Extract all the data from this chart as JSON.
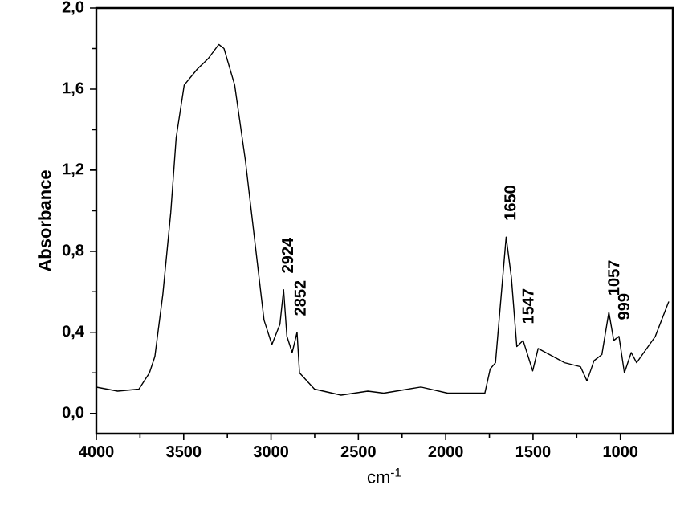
{
  "chart_data": {
    "type": "line",
    "xlabel": "cm$^{-1}$",
    "ylabel": "Absorbance",
    "xlim": [
      4000,
      700
    ],
    "ylim": [
      -0.1,
      2.0
    ],
    "xticks": [
      4000,
      3500,
      3000,
      2500,
      2000,
      1500,
      1000
    ],
    "yticks": [
      {
        "value": 0,
        "label": "0,0"
      },
      {
        "value": 0.4,
        "label": "0,4"
      },
      {
        "value": 0.8,
        "label": "0,8"
      },
      {
        "value": 1.2,
        "label": "1,2"
      },
      {
        "value": 1.6,
        "label": "1,6"
      },
      {
        "value": 2.0,
        "label": "2,0"
      }
    ],
    "grid": false,
    "marker": "none",
    "line_style": "solid",
    "series": [
      {
        "color": "#000000",
        "x": [
          4000,
          3878,
          3756,
          3696,
          3665,
          3619,
          3574,
          3543,
          3497,
          3421,
          3360,
          3299,
          3269,
          3208,
          3147,
          3086,
          3040,
          2995,
          2949,
          2928,
          2909,
          2879,
          2851,
          2837,
          2751,
          2599,
          2446,
          2355,
          2142,
          1989,
          1776,
          1745,
          1715,
          1654,
          1624,
          1593,
          1557,
          1502,
          1471,
          1319,
          1228,
          1191,
          1151,
          1106,
          1066,
          1038,
          1008,
          977,
          938,
          907,
          800,
          724
        ],
        "values": [
          0.13,
          0.11,
          0.12,
          0.2,
          0.28,
          0.59,
          0.99,
          1.36,
          1.62,
          1.7,
          1.75,
          1.82,
          1.8,
          1.62,
          1.25,
          0.8,
          0.46,
          0.34,
          0.44,
          0.61,
          0.38,
          0.3,
          0.4,
          0.2,
          0.12,
          0.09,
          0.11,
          0.1,
          0.13,
          0.1,
          0.1,
          0.22,
          0.25,
          0.87,
          0.67,
          0.33,
          0.36,
          0.21,
          0.32,
          0.25,
          0.23,
          0.16,
          0.26,
          0.29,
          0.5,
          0.36,
          0.38,
          0.2,
          0.3,
          0.25,
          0.38,
          0.55
        ]
      }
    ],
    "annotations": [
      {
        "text": "2924",
        "x": 2924,
        "y": 0.61
      },
      {
        "text": "2852",
        "x": 2852,
        "y": 0.4
      },
      {
        "text": "1650",
        "x": 1650,
        "y": 0.87
      },
      {
        "text": "1547",
        "x": 1547,
        "y": 0.36
      },
      {
        "text": "1057",
        "x": 1057,
        "y": 0.5
      },
      {
        "text": "999",
        "x": 999,
        "y": 0.38
      }
    ]
  }
}
